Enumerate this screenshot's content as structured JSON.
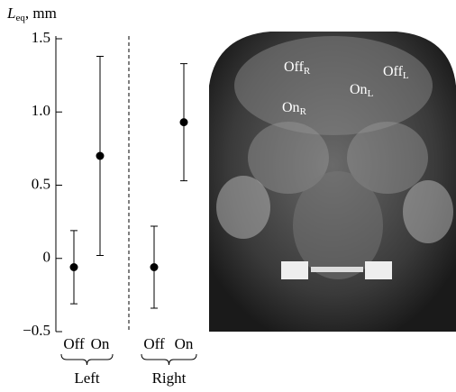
{
  "chart_data": {
    "type": "errorbar",
    "y_label": {
      "symbol": "L",
      "sub": "eq",
      "unit": ", mm"
    },
    "categories": [
      "Off",
      "On",
      "Off",
      "On"
    ],
    "groups": [
      {
        "label": "Left",
        "members": [
          0,
          1
        ]
      },
      {
        "label": "Right",
        "members": [
          2,
          3
        ]
      }
    ],
    "values": [
      -0.06,
      0.7,
      -0.06,
      0.93
    ],
    "errors": [
      0.25,
      0.68,
      0.28,
      0.4
    ],
    "color": "#000000",
    "ylim": [
      -0.5,
      1.5
    ],
    "yticks": [
      {
        "value": -0.5,
        "label": "−0.5"
      },
      0,
      0.5,
      {
        "value": 1,
        "label": "1.0"
      },
      1.5
    ],
    "image_labels": [
      {
        "text": "Off",
        "sub": "R"
      },
      {
        "text": "Off",
        "sub": "L"
      },
      {
        "text": "On",
        "sub": "L"
      },
      {
        "text": "On",
        "sub": "R"
      }
    ]
  }
}
